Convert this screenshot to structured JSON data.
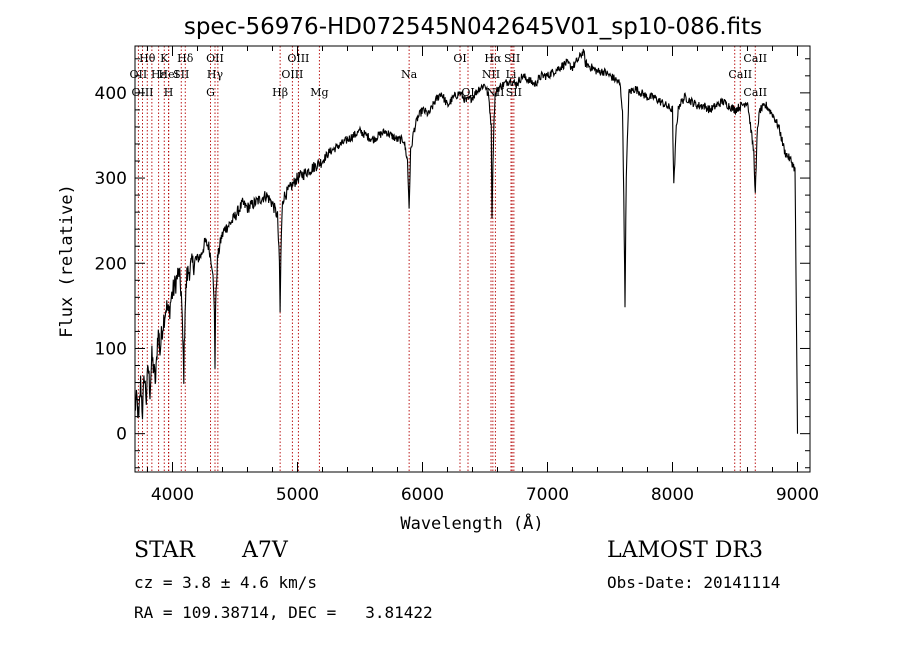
{
  "chart_data": {
    "type": "line",
    "title": "spec-56976-HD072545N042645V01_sp10-086.fits",
    "xlabel": "Wavelength (Å)",
    "ylabel": "Flux (relative)",
    "xlim": [
      3700,
      9100
    ],
    "ylim": [
      -45,
      455
    ],
    "x_ticks": [
      4000,
      5000,
      6000,
      7000,
      8000,
      9000
    ],
    "y_ticks": [
      0,
      100,
      200,
      300,
      400
    ],
    "colors": {
      "spectrum": "#000000",
      "line_markers": "#b40000",
      "axes": "#000000"
    },
    "series": [
      {
        "x": [
          3700,
          3715,
          3730,
          3745,
          3760,
          3775,
          3790,
          3805,
          3820,
          3835,
          3850,
          3865,
          3880,
          3890,
          3900,
          3915,
          3930,
          3950,
          3970,
          3990,
          4010,
          4030,
          4050,
          4070,
          4090,
          4101,
          4115,
          4140,
          4170,
          4200,
          4230,
          4260,
          4290,
          4320,
          4335,
          4340,
          4345,
          4360,
          4390,
          4420,
          4450,
          4480,
          4520,
          4560,
          4600,
          4650,
          4700,
          4750,
          4800,
          4840,
          4855,
          4861,
          4867,
          4880,
          4900,
          4950,
          5000,
          5050,
          5100,
          5150,
          5200,
          5250,
          5300,
          5350,
          5400,
          5450,
          5500,
          5550,
          5600,
          5650,
          5700,
          5750,
          5800,
          5850,
          5880,
          5893,
          5905,
          5930,
          5960,
          6000,
          6050,
          6100,
          6150,
          6200,
          6250,
          6300,
          6350,
          6400,
          6450,
          6500,
          6530,
          6550,
          6556,
          6563,
          6570,
          6580,
          6600,
          6650,
          6700,
          6750,
          6800,
          6850,
          6900,
          6950,
          7000,
          7050,
          7100,
          7150,
          7200,
          7250,
          7290,
          7300,
          7350,
          7400,
          7450,
          7500,
          7550,
          7580,
          7600,
          7610,
          7620,
          7630,
          7650,
          7700,
          7750,
          7800,
          7850,
          7900,
          7950,
          8000,
          8010,
          8030,
          8050,
          8100,
          8150,
          8200,
          8250,
          8300,
          8350,
          8400,
          8450,
          8500,
          8550,
          8600,
          8650,
          8662,
          8680,
          8700,
          8750,
          8800,
          8850,
          8900,
          8950,
          8980,
          9000
        ],
        "values": [
          30,
          40,
          15,
          60,
          25,
          70,
          40,
          80,
          50,
          90,
          75,
          60,
          110,
          120,
          95,
          120,
          135,
          150,
          140,
          160,
          170,
          180,
          190,
          165,
          70,
          150,
          185,
          195,
          200,
          205,
          210,
          225,
          220,
          195,
          145,
          80,
          150,
          205,
          230,
          240,
          245,
          250,
          260,
          270,
          265,
          270,
          275,
          280,
          270,
          255,
          200,
          140,
          210,
          275,
          280,
          290,
          300,
          305,
          310,
          315,
          320,
          330,
          335,
          340,
          345,
          350,
          355,
          350,
          345,
          350,
          355,
          350,
          345,
          345,
          320,
          265,
          330,
          355,
          370,
          380,
          375,
          390,
          400,
          385,
          395,
          400,
          390,
          395,
          405,
          410,
          395,
          360,
          255,
          310,
          360,
          395,
          405,
          410,
          415,
          410,
          420,
          415,
          410,
          420,
          420,
          425,
          430,
          435,
          430,
          440,
          450,
          435,
          430,
          425,
          425,
          420,
          415,
          410,
          380,
          280,
          150,
          300,
          400,
          405,
          400,
          395,
          395,
          390,
          385,
          380,
          290,
          360,
          385,
          395,
          390,
          385,
          385,
          380,
          385,
          390,
          385,
          380,
          385,
          390,
          330,
          280,
          360,
          380,
          385,
          375,
          360,
          330,
          320,
          310,
          0
        ]
      }
    ],
    "spectral_lines": [
      {
        "label": "Hθ",
        "x": 3798,
        "row": 0
      },
      {
        "label": "K",
        "x": 3934,
        "row": 0
      },
      {
        "label": "Hδ",
        "x": 4102,
        "row": 0
      },
      {
        "label": "OII",
        "x": 4340,
        "row": 0
      },
      {
        "label": "OIII",
        "x": 5007,
        "row": 0
      },
      {
        "label": "OI",
        "x": 6300,
        "row": 0
      },
      {
        "label": "Hα",
        "x": 6563,
        "row": 0
      },
      {
        "label": "SII",
        "x": 6717,
        "row": 0
      },
      {
        "label": "CaII",
        "x": 8662,
        "row": 0
      },
      {
        "label": "OII",
        "x": 3727,
        "row": 1
      },
      {
        "label": "Hε",
        "x": 3889,
        "row": 1
      },
      {
        "label": "HeI",
        "x": 3970,
        "row": 1
      },
      {
        "label": "SII",
        "x": 4070,
        "row": 1
      },
      {
        "label": "Hγ",
        "x": 4340,
        "row": 1
      },
      {
        "label": "OIII",
        "x": 4959,
        "row": 1
      },
      {
        "label": "Na",
        "x": 5893,
        "row": 1
      },
      {
        "label": "NII",
        "x": 6548,
        "row": 1
      },
      {
        "label": "Li",
        "x": 6708,
        "row": 1
      },
      {
        "label": "CaII",
        "x": 8542,
        "row": 1
      },
      {
        "label": "OIII",
        "x": 3760,
        "row": 2
      },
      {
        "label": "H",
        "x": 3968,
        "row": 2
      },
      {
        "label": "G",
        "x": 4304,
        "row": 2
      },
      {
        "label": "Hβ",
        "x": 4861,
        "row": 2
      },
      {
        "label": "Mg",
        "x": 5175,
        "row": 2
      },
      {
        "label": "OI",
        "x": 6364,
        "row": 2
      },
      {
        "label": "NII",
        "x": 6583,
        "row": 2
      },
      {
        "label": "SII",
        "x": 6731,
        "row": 2
      },
      {
        "label": "CaII",
        "x": 8662,
        "row": 2
      }
    ],
    "marker_lines": [
      3727,
      3760,
      3798,
      3835,
      3889,
      3934,
      3968,
      3970,
      4070,
      4102,
      4304,
      4340,
      4363,
      4861,
      4959,
      5007,
      5175,
      5893,
      6300,
      6364,
      6548,
      6563,
      6583,
      6708,
      6717,
      6731,
      8498,
      8542,
      8662
    ],
    "grid": false,
    "legend": "none"
  },
  "info": {
    "object_class": "STAR",
    "subclass": "A7V",
    "survey": "LAMOST DR3",
    "cz": "cz = 3.8 ± 4.6 km/s",
    "obs_date": "Obs-Date: 20141114",
    "ra_dec": "RA = 109.38714, DEC =   3.81422"
  }
}
